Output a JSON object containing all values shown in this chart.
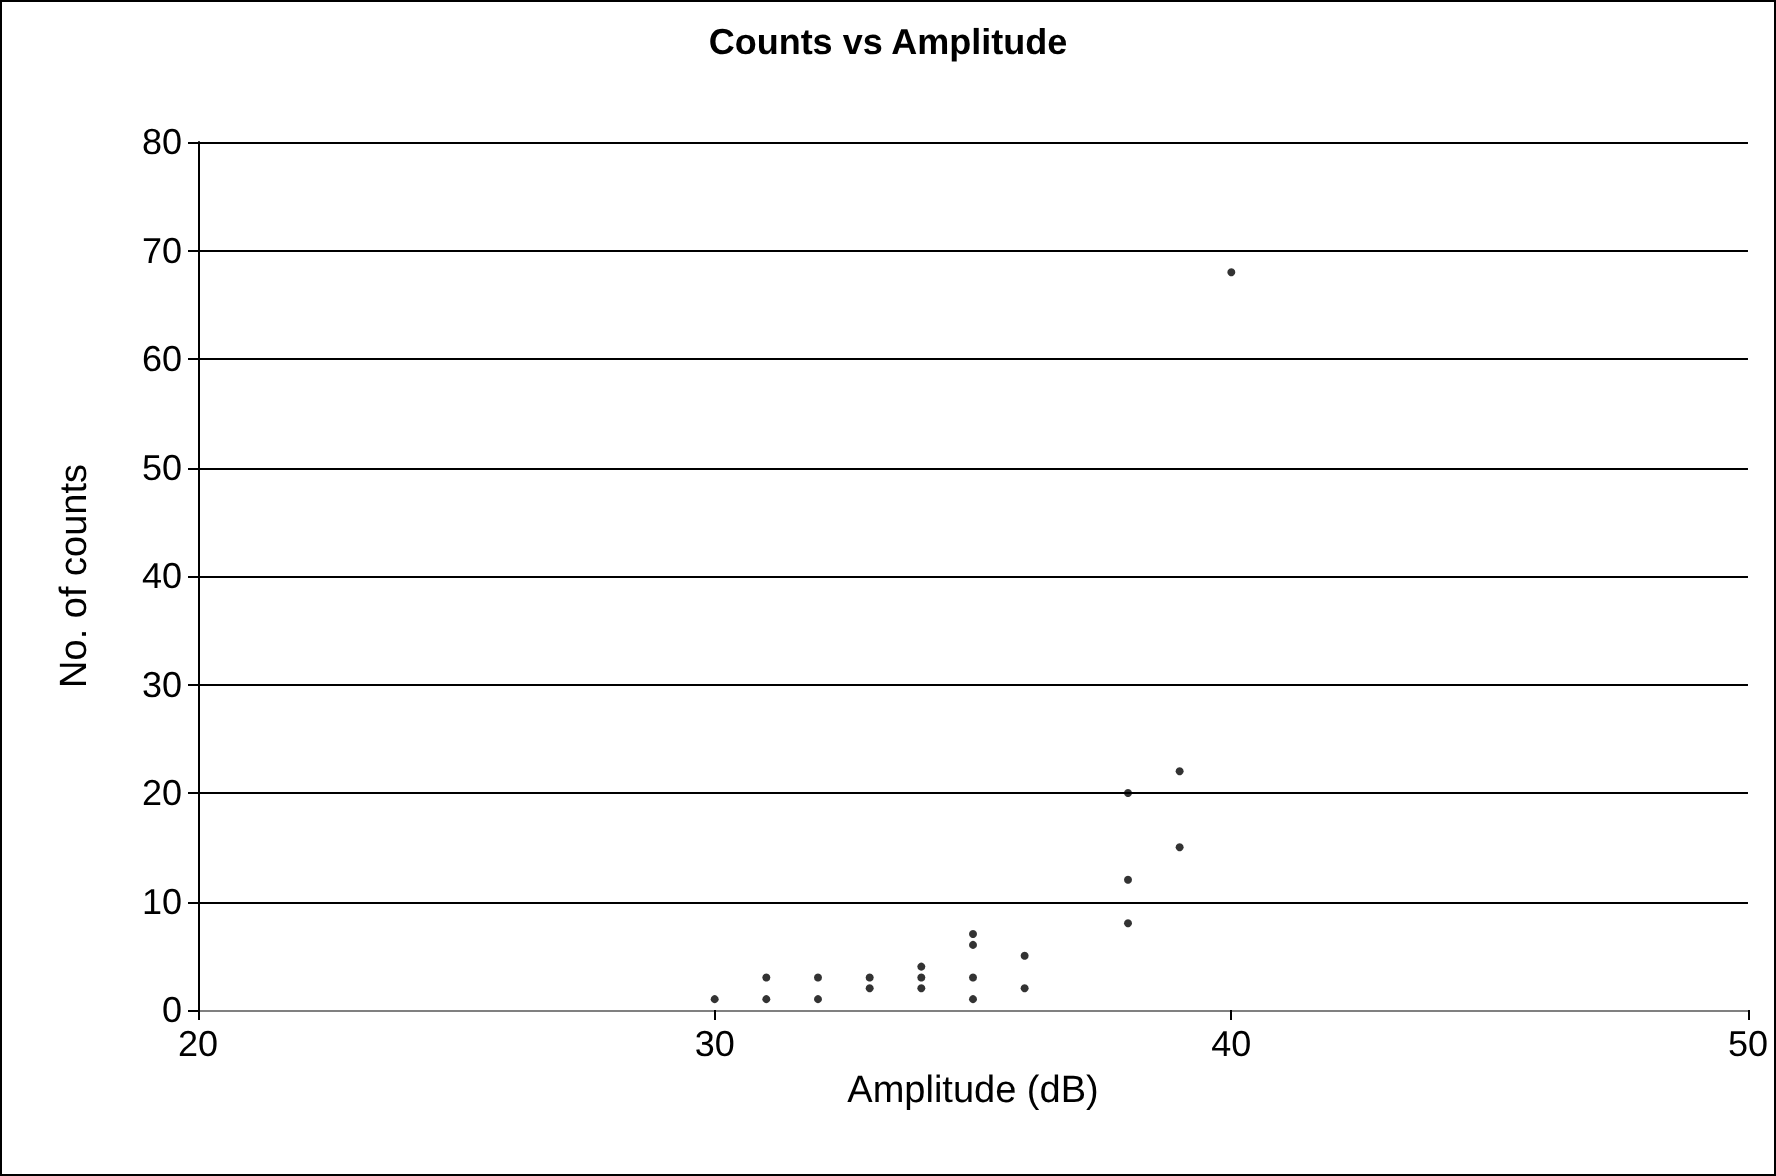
{
  "chart_data": {
    "type": "scatter",
    "title": "Counts vs Amplitude",
    "xlabel": "Amplitude (dB)",
    "ylabel": "No. of counts",
    "x": [
      30,
      31,
      31,
      32,
      32,
      33,
      33,
      34,
      34,
      34,
      35,
      35,
      35,
      35,
      36,
      36,
      38,
      38,
      38,
      39,
      39,
      40
    ],
    "values": [
      1,
      1,
      3,
      1,
      3,
      2,
      3,
      2,
      3,
      4,
      1,
      3,
      6,
      7,
      2,
      5,
      8,
      12,
      20,
      15,
      22,
      68
    ],
    "color": "#000000",
    "marker": "circle",
    "xlim": [
      20,
      50
    ],
    "xticks": [
      20,
      30,
      40,
      50
    ],
    "ylim": [
      0,
      80
    ],
    "yticks": [
      0,
      10,
      20,
      30,
      40,
      50,
      60,
      70,
      80
    ],
    "grid": "y"
  }
}
